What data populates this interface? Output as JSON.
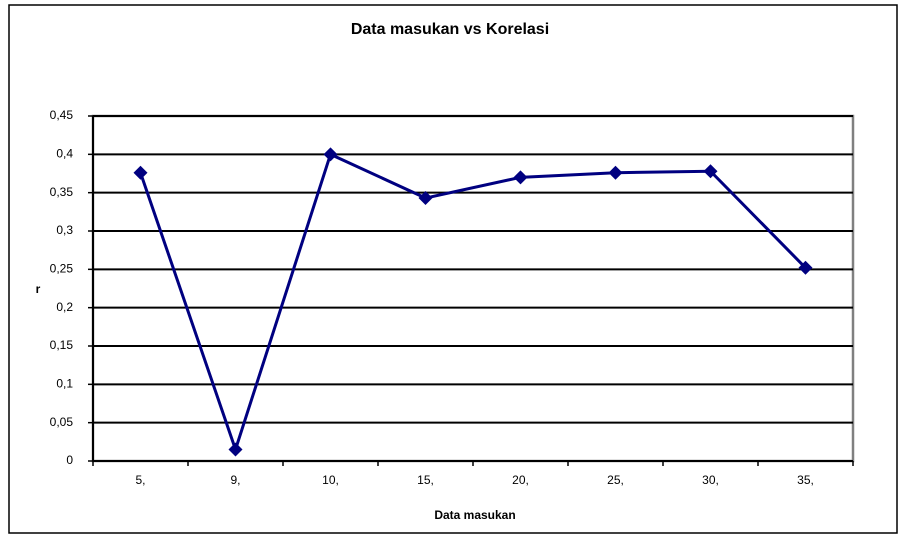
{
  "chart_data": {
    "type": "line",
    "title": "Data masukan vs Korelasi",
    "x_label": "Data masukan",
    "y_label": "r",
    "categories": [
      "5,",
      "9,",
      "10,",
      "15,",
      "20,",
      "25,",
      "30,",
      "35,"
    ],
    "series": [
      {
        "name": "r",
        "color": "#000080",
        "values": [
          0.376,
          0.015,
          0.4,
          0.343,
          0.37,
          0.376,
          0.378,
          0.252
        ]
      }
    ],
    "ylim": [
      0,
      0.45
    ],
    "yticks": [
      0,
      {
        "value": 0.05,
        "label": "0,05"
      },
      {
        "value": 0.1,
        "label": "0,1"
      },
      {
        "value": 0.15,
        "label": "0,15"
      },
      {
        "value": 0.2,
        "label": "0,2"
      },
      {
        "value": 0.25,
        "label": "0,25"
      },
      {
        "value": 0.3,
        "label": "0,3"
      },
      {
        "value": 0.35,
        "label": "0,35"
      },
      {
        "value": 0.4,
        "label": "0,4"
      },
      {
        "value": 0.45,
        "label": "0,45"
      }
    ],
    "grid": true,
    "legend": false
  }
}
